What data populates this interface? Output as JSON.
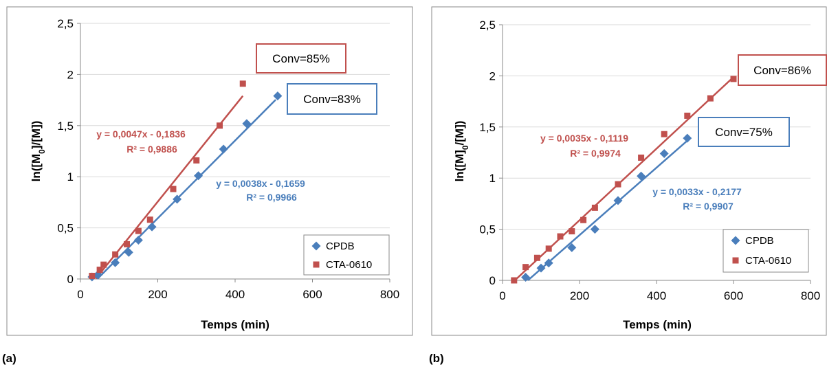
{
  "colors": {
    "cpdb": "#4a7ebb",
    "cta": "#c0504d"
  },
  "chart_data": [
    {
      "type": "scatter",
      "panel_label": "(a)",
      "xlabel": "Temps (min)",
      "ylabel_html_parts": [
        "ln([M",
        "0",
        "]/[M])"
      ],
      "xlim": [
        0,
        800
      ],
      "ylim": [
        0,
        2.5
      ],
      "x_ticks": [
        "0",
        "200",
        "400",
        "600",
        "800"
      ],
      "y_ticks": [
        "0",
        "0,5",
        "1",
        "1,5",
        "2",
        "2,5"
      ],
      "grid": "horizontal",
      "legend_position": "bottom-right",
      "series": [
        {
          "name": "CPDB",
          "marker": "diamond",
          "color": "#4a7ebb",
          "x": [
            30,
            45,
            90,
            125,
            150,
            185,
            250,
            305,
            370,
            430,
            510
          ],
          "y": [
            0.02,
            0.04,
            0.16,
            0.26,
            0.38,
            0.51,
            0.78,
            1.01,
            1.27,
            1.52,
            1.79
          ],
          "fit": {
            "slope": 0.0038,
            "intercept": -0.1659,
            "x_range": [
              44,
              505
            ]
          },
          "equation": "y = 0,0038x - 0,1659",
          "r2": "R² = 0,9966",
          "conversion": "Conv=83%"
        },
        {
          "name": "CTA-0610",
          "marker": "square",
          "color": "#c0504d",
          "x": [
            30,
            50,
            60,
            90,
            120,
            150,
            180,
            240,
            300,
            360,
            420
          ],
          "y": [
            0.03,
            0.09,
            0.14,
            0.24,
            0.34,
            0.47,
            0.58,
            0.88,
            1.16,
            1.5,
            1.91
          ],
          "fit": {
            "slope": 0.0047,
            "intercept": -0.1836,
            "x_range": [
              40,
              420
            ]
          },
          "equation": "y = 0,0047x - 0,1836",
          "r2": "R² = 0,9886",
          "conversion": "Conv=85%"
        }
      ]
    },
    {
      "type": "scatter",
      "panel_label": "(b)",
      "xlabel": "Temps (min)",
      "ylabel_html_parts": [
        "ln([M]",
        "0",
        "/[M])"
      ],
      "xlim": [
        0,
        800
      ],
      "ylim": [
        0,
        2.5
      ],
      "x_ticks": [
        "0",
        "200",
        "400",
        "600",
        "800"
      ],
      "y_ticks": [
        "0",
        "0,5",
        "1",
        "1,5",
        "2",
        "2,5"
      ],
      "grid": "horizontal",
      "legend_position": "bottom-right",
      "series": [
        {
          "name": "CPDB",
          "marker": "diamond",
          "color": "#4a7ebb",
          "x": [
            60,
            100,
            120,
            180,
            240,
            300,
            360,
            420,
            480
          ],
          "y": [
            0.03,
            0.12,
            0.17,
            0.32,
            0.5,
            0.78,
            1.02,
            1.24,
            1.39
          ],
          "fit": {
            "slope": 0.0033,
            "intercept": -0.2177,
            "x_range": [
              66,
              480
            ]
          },
          "equation": "y = 0,0033x - 0,2177",
          "r2": "R² = 0,9907",
          "conversion": "Conv=75%"
        },
        {
          "name": "CTA-0610",
          "marker": "square",
          "color": "#c0504d",
          "x": [
            30,
            60,
            90,
            120,
            150,
            180,
            210,
            240,
            300,
            360,
            420,
            480,
            540,
            600
          ],
          "y": [
            0.0,
            0.13,
            0.22,
            0.31,
            0.43,
            0.48,
            0.59,
            0.71,
            0.94,
            1.2,
            1.43,
            1.61,
            1.78,
            1.97
          ],
          "fit": {
            "slope": 0.0035,
            "intercept": -0.1119,
            "x_range": [
              32,
              600
            ]
          },
          "equation": "y = 0,0035x - 0,1119",
          "r2": "R² = 0,9974",
          "conversion": "Conv=86%"
        }
      ]
    }
  ]
}
